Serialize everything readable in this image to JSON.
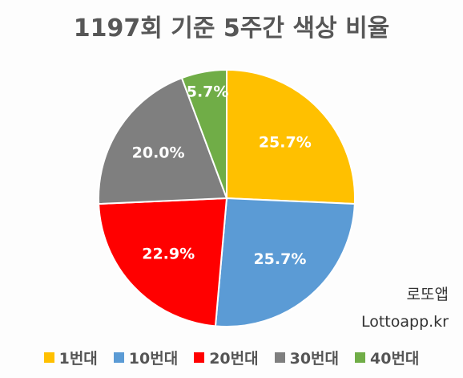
{
  "chart_data": {
    "type": "pie",
    "title": "1197회 기준 5주간 색상 비율",
    "categories": [
      "1번대",
      "10번대",
      "20번대",
      "30번대",
      "40번대"
    ],
    "values": [
      25.7,
      25.7,
      22.9,
      20.0,
      5.7
    ],
    "value_labels": [
      "25.7%",
      "25.7%",
      "22.9%",
      "20.0%",
      "5.7%"
    ],
    "colors": [
      "#ffc000",
      "#5b9bd5",
      "#ff0000",
      "#7f7f7f",
      "#70ad47"
    ],
    "start_angle": "12 o'clock",
    "direction": "clockwise",
    "legend_position": "bottom"
  },
  "watermark": {
    "line1": "로또앱",
    "line2": "Lottoapp.kr"
  }
}
